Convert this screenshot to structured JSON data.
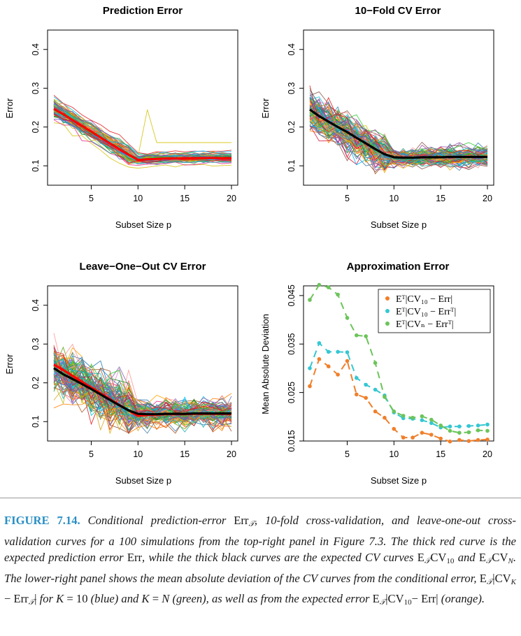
{
  "figure": {
    "panels": [
      {
        "title": "Prediction Error",
        "xlabel": "Subset Size p",
        "ylabel": "Error"
      },
      {
        "title": "10−Fold CV Error",
        "xlabel": "Subset Size p",
        "ylabel": "Error"
      },
      {
        "title": "Leave−One−Out CV Error",
        "xlabel": "Subset Size p",
        "ylabel": "Error"
      },
      {
        "title": "Approximation Error",
        "xlabel": "Subset Size p",
        "ylabel": "Mean Absolute Deviation"
      }
    ],
    "legend": [
      "Eᵀ|CV₁₀ − Err|",
      "Eᵀ|CV₁₀ − Errᵀ|",
      "Eᵀ|CVₙ − Errᵀ|"
    ]
  },
  "chart_data": [
    {
      "type": "line",
      "title": "Prediction Error",
      "xlabel": "Subset Size p",
      "ylabel": "Error",
      "xlim": [
        1,
        20
      ],
      "ylim": [
        0.05,
        0.45
      ],
      "x_ticks": [
        "5",
        "10",
        "15",
        "20"
      ],
      "y_ticks": [
        "0.1",
        "0.2",
        "0.3",
        "0.4"
      ],
      "x": [
        1,
        2,
        3,
        4,
        5,
        6,
        7,
        8,
        9,
        10,
        11,
        12,
        13,
        14,
        15,
        16,
        17,
        18,
        19,
        20
      ],
      "series": [
        {
          "color": "#ff0000",
          "values": [
            0.247,
            0.233,
            0.218,
            0.203,
            0.188,
            0.173,
            0.158,
            0.143,
            0.129,
            0.115,
            0.117,
            0.118,
            0.119,
            0.119,
            0.119,
            0.12,
            0.12,
            0.12,
            0.12,
            0.12
          ]
        }
      ],
      "simulated_curves": 100
    },
    {
      "type": "line",
      "title": "10−Fold CV Error",
      "xlabel": "Subset Size p",
      "ylabel": "Error",
      "xlim": [
        1,
        20
      ],
      "ylim": [
        0.05,
        0.45
      ],
      "x_ticks": [
        "5",
        "10",
        "15",
        "20"
      ],
      "y_ticks": [
        "0.1",
        "0.2",
        "0.3",
        "0.4"
      ],
      "x": [
        1,
        2,
        3,
        4,
        5,
        6,
        7,
        8,
        9,
        10,
        11,
        12,
        13,
        14,
        15,
        16,
        17,
        18,
        19,
        20
      ],
      "series": [
        {
          "color": "#000000",
          "values": [
            0.245,
            0.228,
            0.214,
            0.2,
            0.187,
            0.172,
            0.158,
            0.143,
            0.13,
            0.122,
            0.121,
            0.121,
            0.122,
            0.122,
            0.122,
            0.123,
            0.123,
            0.123,
            0.123,
            0.123
          ]
        }
      ],
      "simulated_curves": 100
    },
    {
      "type": "line",
      "title": "Leave−One−Out CV Error",
      "xlabel": "Subset Size p",
      "ylabel": "Error",
      "xlim": [
        1,
        20
      ],
      "ylim": [
        0.05,
        0.45
      ],
      "x_ticks": [
        "5",
        "10",
        "15",
        "20"
      ],
      "y_ticks": [
        "0.1",
        "0.2",
        "0.3",
        "0.4"
      ],
      "x": [
        1,
        2,
        3,
        4,
        5,
        6,
        7,
        8,
        9,
        10,
        11,
        12,
        13,
        14,
        15,
        16,
        17,
        18,
        19,
        20
      ],
      "series": [
        {
          "color": "#ff0000",
          "values": [
            0.247,
            0.233,
            0.218,
            0.203,
            0.188,
            0.173,
            0.158,
            0.143,
            0.129,
            0.115,
            0.117,
            0.118,
            0.119,
            0.119,
            0.119,
            0.12,
            0.12,
            0.12,
            0.12,
            0.12
          ]
        },
        {
          "color": "#000000",
          "values": [
            0.238,
            0.222,
            0.21,
            0.197,
            0.184,
            0.17,
            0.156,
            0.142,
            0.129,
            0.12,
            0.119,
            0.119,
            0.12,
            0.12,
            0.12,
            0.121,
            0.121,
            0.121,
            0.121,
            0.121
          ]
        }
      ],
      "simulated_curves": 100
    },
    {
      "type": "scatter",
      "title": "Approximation Error",
      "xlabel": "Subset Size p",
      "ylabel": "Mean Absolute Deviation",
      "xlim": [
        1,
        20
      ],
      "ylim": [
        0.015,
        0.047
      ],
      "x_ticks": [
        "5",
        "10",
        "15",
        "20"
      ],
      "y_ticks": [
        "0.015",
        "0.025",
        "0.035",
        "0.045"
      ],
      "x": [
        1,
        2,
        3,
        4,
        5,
        6,
        7,
        8,
        9,
        10,
        11,
        12,
        13,
        14,
        15,
        16,
        17,
        18,
        19,
        20
      ],
      "legend_position": "top-right",
      "series": [
        {
          "name": "Eᵀ|CV₁₀ − Err|",
          "color": "#f07f2a",
          "values": [
            0.0263,
            0.0319,
            0.0304,
            0.0287,
            0.0315,
            0.0246,
            0.0239,
            0.0211,
            0.0198,
            0.0175,
            0.0157,
            0.0157,
            0.0167,
            0.0163,
            0.0155,
            0.0149,
            0.0152,
            0.015,
            0.0152,
            0.0153
          ]
        },
        {
          "name": "Eᵀ|CV₁₀ − Errᵀ|",
          "color": "#35c7d2",
          "values": [
            0.03,
            0.0352,
            0.0334,
            0.0334,
            0.0333,
            0.028,
            0.0266,
            0.0256,
            0.0244,
            0.0209,
            0.0197,
            0.0196,
            0.0193,
            0.0187,
            0.0178,
            0.018,
            0.018,
            0.0181,
            0.0182,
            0.0184
          ]
        },
        {
          "name": "Eᵀ|CVₙ − Errᵀ|",
          "color": "#6cc45a",
          "values": [
            0.0441,
            0.0472,
            0.0467,
            0.0452,
            0.0404,
            0.0368,
            0.0366,
            0.0311,
            0.0241,
            0.0211,
            0.0202,
            0.0198,
            0.0201,
            0.0194,
            0.0182,
            0.0171,
            0.0167,
            0.0168,
            0.0172,
            0.0171
          ]
        }
      ]
    }
  ],
  "caption": {
    "label": "FIGURE 7.14.",
    "parts": [
      "Conditional prediction-error",
      "Err",
      "𝒯",
      ", 10-fold cross-validation, and leave-one-out cross-validation curves for a 100 simulations from the top-right panel in Figure 7.3. The thick red curve is the expected prediction error",
      "Err",
      ", while the thick black curves are the expected CV curves",
      "E",
      "𝒯",
      "CV",
      "10",
      "and",
      "E",
      "𝒯",
      "CV",
      "N",
      ". The lower-right panel shows the mean absolute deviation of the CV curves from the conditional error,",
      "E",
      "𝒯",
      "|CV",
      "K",
      "− Err",
      "𝒯",
      "|",
      "for",
      "K",
      "= 10",
      "(blue) and",
      "K",
      "=",
      "N",
      "(green), as well as from the expected error",
      "E",
      "𝒯",
      "|CV",
      "10",
      "− Err|",
      "(orange)."
    ]
  }
}
